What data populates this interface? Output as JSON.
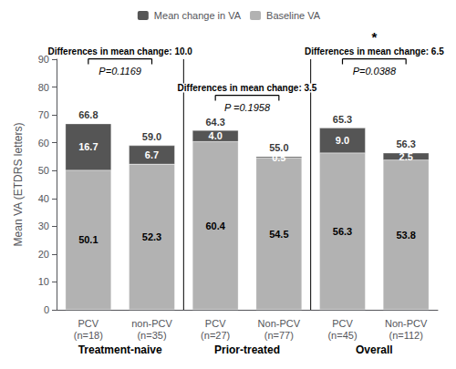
{
  "chart_data": {
    "type": "bar",
    "stacked": true,
    "data_labels": true,
    "grid": false,
    "legend": "top",
    "categories": [
      "PCV\n(n=18)",
      "non-PCV\n(n=35)",
      "PCV\n(n=27)",
      "Non-PCV\n(n=77)",
      "PCV\n(n=45)",
      "Non-PCV\n(n=112)"
    ],
    "series": [
      {
        "name": "Baseline VA",
        "color": "#b2b2b2",
        "values": [
          50.1,
          52.3,
          60.4,
          54.5,
          56.3,
          53.8
        ]
      },
      {
        "name": "Mean change in VA",
        "color": "#555555",
        "values": [
          16.7,
          6.7,
          4.0,
          0.5,
          9.0,
          2.5
        ],
        "value_labels": [
          "16.7",
          "6.7",
          "4.0",
          "0.5",
          "9.0",
          "2.5"
        ]
      }
    ],
    "totals": {
      "values": [
        66.8,
        59.0,
        64.3,
        55.0,
        65.3,
        56.3
      ],
      "value_labels": [
        "66.8",
        "59.0",
        "64.3",
        "55.0",
        "65.3",
        "56.3"
      ]
    },
    "ylabel": "Mean VA (ETDRS letters)",
    "ylim": [
      0,
      90
    ],
    "yticks": [
      0,
      10,
      20,
      30,
      40,
      50,
      60,
      70,
      80,
      90
    ],
    "groups": [
      {
        "label": "Treatment-naive",
        "bars": [
          0,
          1
        ]
      },
      {
        "label": "Prior-treated",
        "bars": [
          2,
          3
        ]
      },
      {
        "label": "Overall",
        "bars": [
          4,
          5
        ]
      }
    ],
    "annotations": [
      {
        "bars": [
          0,
          1
        ],
        "text": "Differences in mean change: 10.0",
        "p_value": "P=0.1169"
      },
      {
        "bars": [
          2,
          3
        ],
        "text": "Differences in mean change: 3.5",
        "p_value": "P =0.1958"
      },
      {
        "bars": [
          4,
          5
        ],
        "text": "Differences in mean change: 6.5",
        "p_value": "P=0.0388",
        "star": "*"
      }
    ]
  }
}
